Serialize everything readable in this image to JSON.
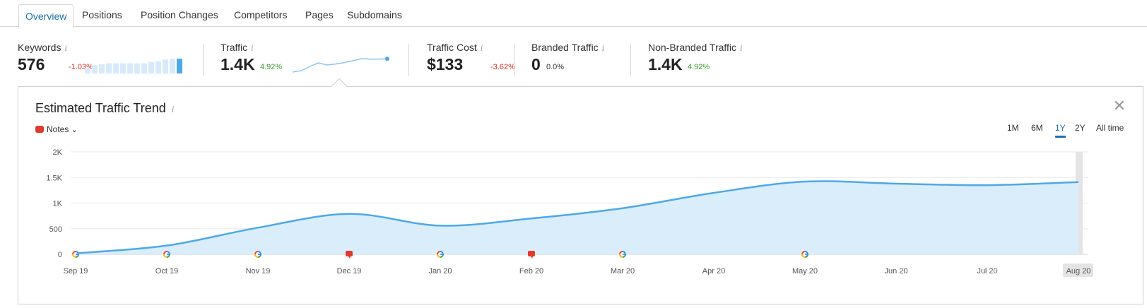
{
  "tabs": [
    {
      "label": "Overview",
      "active": true
    },
    {
      "label": "Positions"
    },
    {
      "label": "Position Changes"
    },
    {
      "label": "Competitors"
    },
    {
      "label": "Pages"
    },
    {
      "label": "Subdomains"
    }
  ],
  "metrics": {
    "keywords": {
      "label": "Keywords",
      "value": "576",
      "delta": "-1.03%"
    },
    "traffic": {
      "label": "Traffic",
      "value": "1.4K",
      "delta": "4.92%"
    },
    "traffic_cost": {
      "label": "Traffic Cost",
      "value": "$133",
      "delta": "-3.62%"
    },
    "branded": {
      "label": "Branded Traffic",
      "value": "0",
      "delta": "0.0%"
    },
    "non_branded": {
      "label": "Non-Branded Traffic",
      "value": "1.4K",
      "delta": "4.92%"
    }
  },
  "info_glyph": "i",
  "panel": {
    "title": "Estimated Traffic Trend",
    "notes_label": "Notes",
    "ranges": [
      "1M",
      "6M",
      "1Y",
      "2Y",
      "All time"
    ],
    "active_range": "1Y",
    "close_glyph": "✕",
    "chevron_glyph": "⌄"
  },
  "colors": {
    "accent": "#1a6fb0",
    "line": "#4ea8e8",
    "area": "#d9edfb",
    "note_red": "#e03a2f",
    "negative": "#d93025",
    "positive": "#3e9b2e"
  },
  "keyword_sparkline": [
    30,
    45,
    50,
    55,
    55,
    55,
    55,
    55,
    55,
    62,
    65,
    75,
    80,
    80
  ],
  "traffic_sparkline": [
    5,
    15,
    45,
    70,
    55,
    62,
    72,
    85,
    100,
    96,
    96,
    99
  ],
  "chart_data": {
    "type": "area",
    "x": [
      "Sep 19",
      "Oct 19",
      "Nov 19",
      "Dec 19",
      "Jan 20",
      "Feb 20",
      "Mar 20",
      "Apr 20",
      "May 20",
      "Jun 20",
      "Jul 20",
      "Aug 20"
    ],
    "y_ticks": [
      "0",
      "500",
      "1K",
      "1.5K",
      "2K"
    ],
    "ylim": [
      0,
      2000
    ],
    "series": [
      {
        "values": [
          20,
          170,
          520,
          790,
          560,
          700,
          900,
          1200,
          1420,
          1380,
          1350,
          1410
        ]
      }
    ],
    "google_update_markers": [
      "Sep 19",
      "Oct 19",
      "Nov 19",
      "Jan 20",
      "Mar 20",
      "May 20"
    ],
    "note_markers": [
      "Dec 19",
      "Feb 20"
    ],
    "highlighted_x": "Aug 20",
    "grid": true,
    "legend": "none"
  }
}
